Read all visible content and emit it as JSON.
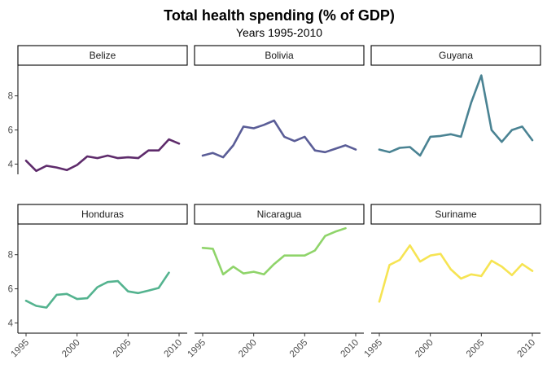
{
  "chart_data": {
    "type": "line",
    "title": "Total health spending (% of GDP)",
    "subtitle": "Years 1995-2010",
    "xlabel": "",
    "ylabel": "",
    "xlim": [
      1995,
      2010
    ],
    "ylim": [
      3.4,
      9.8
    ],
    "x_ticks": [
      1995,
      2000,
      2005,
      2010
    ],
    "y_ticks": [
      4,
      6,
      8
    ],
    "facets": [
      {
        "name": "Belize",
        "color": "#5e2b6b",
        "x": [
          1995,
          1996,
          1997,
          1998,
          1999,
          2000,
          2001,
          2002,
          2003,
          2004,
          2005,
          2006,
          2007,
          2008,
          2009,
          2010
        ],
        "values": [
          4.2,
          3.6,
          3.9,
          3.8,
          3.65,
          3.95,
          4.45,
          4.35,
          4.5,
          4.35,
          4.4,
          4.35,
          4.8,
          4.8,
          5.45,
          5.2
        ]
      },
      {
        "name": "Bolivia",
        "color": "#5a5d97",
        "x": [
          1995,
          1996,
          1997,
          1998,
          1999,
          2000,
          2001,
          2002,
          2003,
          2004,
          2005,
          2006,
          2007,
          2008,
          2009,
          2010
        ],
        "values": [
          4.5,
          4.65,
          4.4,
          5.1,
          6.2,
          6.1,
          6.3,
          6.55,
          5.6,
          5.35,
          5.6,
          4.8,
          4.7,
          4.9,
          5.1,
          4.85
        ]
      },
      {
        "name": "Guyana",
        "color": "#4a8393",
        "x": [
          1995,
          1996,
          1997,
          1998,
          1999,
          2000,
          2001,
          2002,
          2003,
          2004,
          2005,
          2006,
          2007,
          2008,
          2009,
          2010
        ],
        "values": [
          4.85,
          4.7,
          4.95,
          5.0,
          4.5,
          5.6,
          5.65,
          5.75,
          5.6,
          7.6,
          9.2,
          6.0,
          5.3,
          6.0,
          6.2,
          5.4
        ]
      },
      {
        "name": "Honduras",
        "color": "#54b38f",
        "x": [
          1995,
          1996,
          1997,
          1998,
          1999,
          2000,
          2001,
          2002,
          2003,
          2004,
          2005,
          2006,
          2007,
          2008,
          2009
        ],
        "values": [
          5.3,
          5.0,
          4.9,
          5.65,
          5.7,
          5.4,
          5.45,
          6.1,
          6.4,
          6.45,
          5.85,
          5.75,
          5.9,
          6.05,
          6.95
        ]
      },
      {
        "name": "Nicaragua",
        "color": "#8fd46a",
        "x": [
          1995,
          1996,
          1997,
          1998,
          1999,
          2000,
          2001,
          2002,
          2003,
          2004,
          2005,
          2006,
          2007,
          2008,
          2009
        ],
        "values": [
          8.4,
          8.35,
          6.85,
          7.3,
          6.9,
          7.0,
          6.85,
          7.45,
          7.95,
          7.95,
          7.95,
          8.25,
          9.1,
          9.35,
          9.55
        ]
      },
      {
        "name": "Suriname",
        "color": "#f6e453",
        "x": [
          1995,
          1996,
          1997,
          1998,
          1999,
          2000,
          2001,
          2002,
          2003,
          2004,
          2005,
          2006,
          2007,
          2008,
          2009,
          2010
        ],
        "values": [
          5.25,
          7.4,
          7.7,
          8.55,
          7.6,
          7.95,
          8.05,
          7.15,
          6.6,
          6.85,
          6.75,
          7.65,
          7.3,
          6.8,
          7.45,
          7.05
        ]
      }
    ]
  }
}
